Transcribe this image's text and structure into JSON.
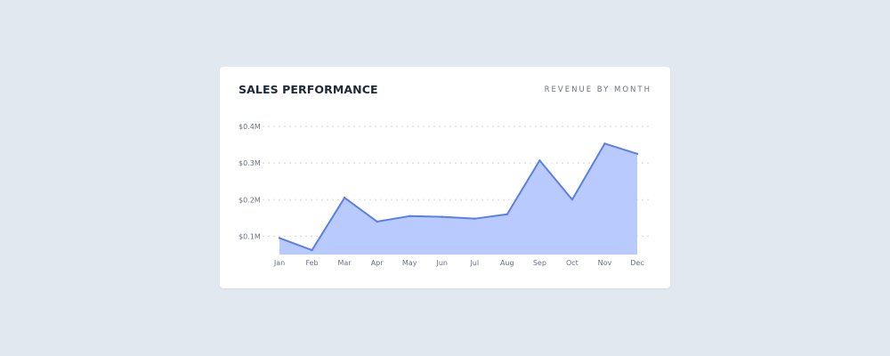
{
  "card": {
    "title": "SALES PERFORMANCE",
    "subtitle": "REVENUE BY MONTH"
  },
  "colors": {
    "line": "#5b7fe6",
    "fill": "#b9caff",
    "grid": "#d6dbe3",
    "card_bg": "#ffffff",
    "page_bg": "#e2e8f0"
  },
  "chart_data": {
    "type": "area",
    "title": "SALES PERFORMANCE",
    "subtitle": "REVENUE BY MONTH",
    "xlabel": "",
    "ylabel": "",
    "categories": [
      "Jan",
      "Feb",
      "Mar",
      "Apr",
      "May",
      "Jun",
      "Jul",
      "Aug",
      "Sep",
      "Oct",
      "Nov",
      "Dec"
    ],
    "series": [
      {
        "name": "Revenue",
        "values": [
          0.095,
          0.062,
          0.205,
          0.14,
          0.155,
          0.153,
          0.148,
          0.16,
          0.307,
          0.2,
          0.353,
          0.325
        ]
      }
    ],
    "ylim": [
      0.05,
      0.4
    ],
    "yticks": [
      0.1,
      0.2,
      0.3,
      0.4
    ],
    "ytick_labels": [
      "$0.1M",
      "$0.2M",
      "$0.3M",
      "$0.4M"
    ],
    "grid": true,
    "legend": "none"
  }
}
